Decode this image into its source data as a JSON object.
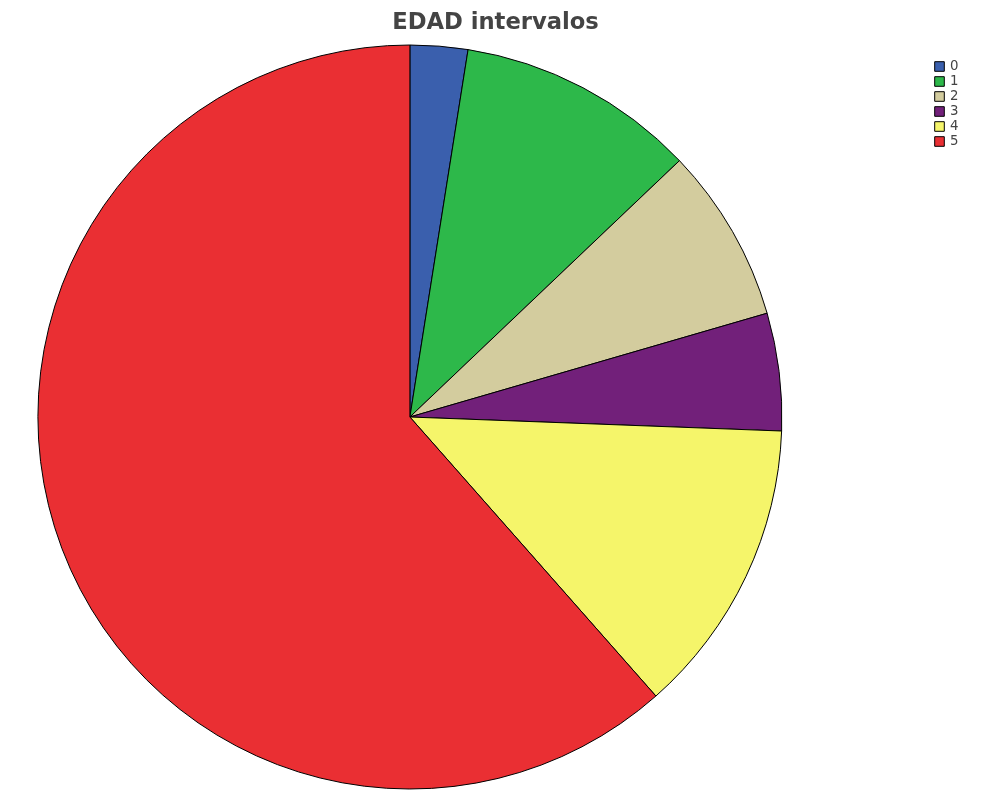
{
  "chart_data": {
    "type": "pie",
    "title": "EDAD intervalos",
    "categories": [
      "0",
      "1",
      "2",
      "3",
      "4",
      "5"
    ],
    "values": [
      2.5,
      10.4,
      7.6,
      5.1,
      12.9,
      61.5
    ],
    "colors": [
      "#3a5fad",
      "#2db84a",
      "#d3cc9e",
      "#72207a",
      "#f5f56a",
      "#ea2f33"
    ],
    "legend": "top right"
  }
}
